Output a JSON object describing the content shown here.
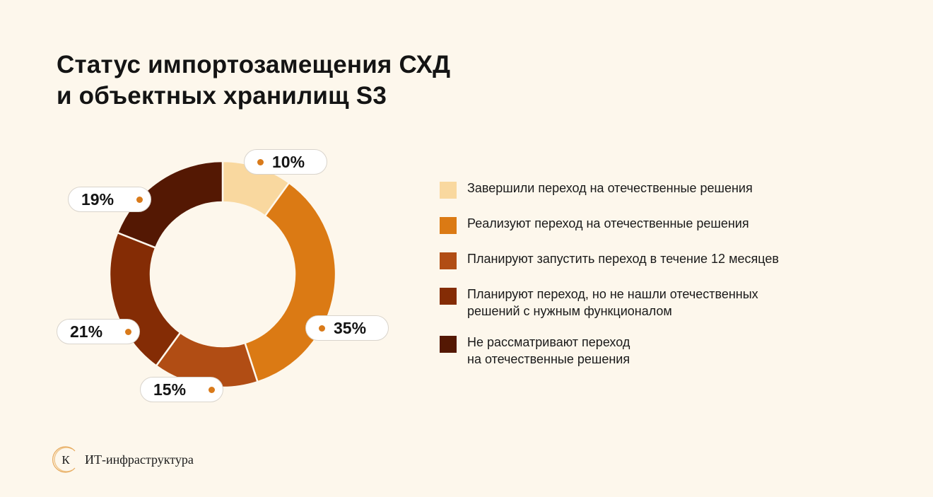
{
  "title": {
    "line1": "Статус импортозамещения СХД",
    "line2": "и объектных хранилищ S3"
  },
  "chart_data": {
    "type": "pie",
    "title": "Статус импортозамещения СХД и объектных хранилищ S3",
    "donut": true,
    "categories": [
      "Завершили переход на отечественные решения",
      "Реализуют переход на отечественные решения",
      "Планируют запустить переход в течение 12 месяцев",
      "Планируют переход, но не нашли отечественных решений с нужным функционалом",
      "Не рассматривают переход на отечественные решения"
    ],
    "values": [
      10,
      35,
      15,
      21,
      19
    ],
    "value_labels": [
      "10%",
      "35%",
      "15%",
      "21%",
      "19%"
    ],
    "colors": [
      "#f9d89f",
      "#db7a14",
      "#b14d14",
      "#842c05",
      "#541803"
    ],
    "legend_position": "right"
  },
  "legend": [
    {
      "text": "Завершили переход на отечественные решения",
      "color": "#f9d89f"
    },
    {
      "text": "Реализуют переход на отечественные решения",
      "color": "#db7a14"
    },
    {
      "text": "Планируют запустить переход в течение 12 месяцев",
      "color": "#b14d14"
    },
    {
      "text": "Планируют переход, но не нашли отечественных\nрешений с нужным функционалом",
      "color": "#842c05"
    },
    {
      "text": "Не рассматривают переход\nна отечественные решения",
      "color": "#541803"
    }
  ],
  "footer": {
    "logo_letter": "К",
    "text": "ИТ-инфраструктура",
    "logo_icon": "k-logo-icon"
  },
  "accent_color": "#d97a1a"
}
